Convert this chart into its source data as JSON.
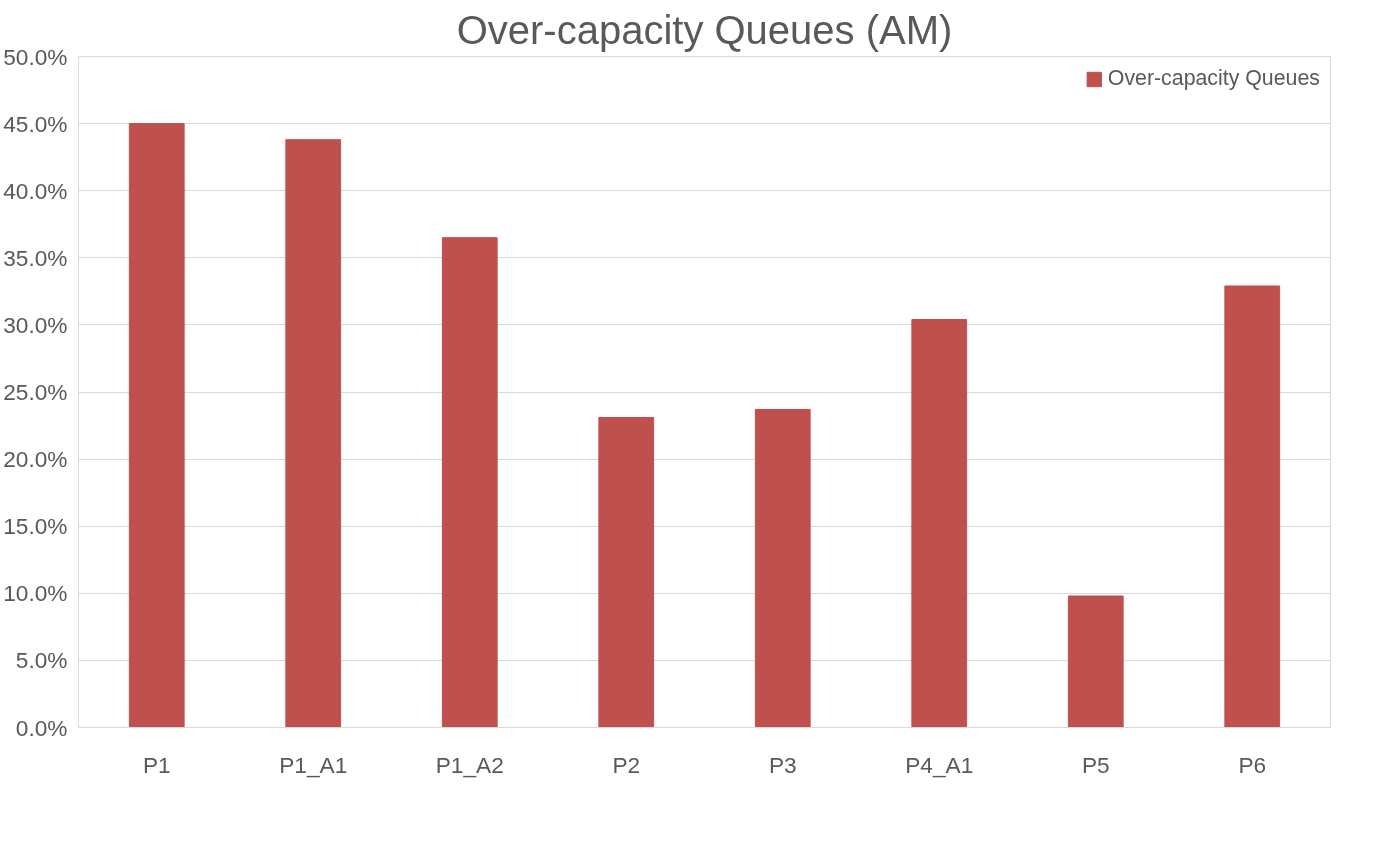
{
  "chart_data": {
    "type": "bar",
    "title": "Over-capacity Queues (AM)",
    "categories": [
      "P1",
      "P1_A1",
      "P1_A2",
      "P2",
      "P3",
      "P4_A1",
      "P5",
      "P6"
    ],
    "series": [
      {
        "name": "Over-capacity Queues",
        "color": "#c0504d",
        "values": [
          45.0,
          43.8,
          36.5,
          23.1,
          23.7,
          30.4,
          9.8,
          32.9
        ]
      }
    ],
    "ylim": [
      0,
      50
    ],
    "yticks": [
      {
        "value": 0,
        "label": "0.0%"
      },
      {
        "value": 5,
        "label": "5.0%"
      },
      {
        "value": 10,
        "label": "10.0%"
      },
      {
        "value": 15,
        "label": "15.0%"
      },
      {
        "value": 20,
        "label": "20.0%"
      },
      {
        "value": 25,
        "label": "25.0%"
      },
      {
        "value": 30,
        "label": "30.0%"
      },
      {
        "value": 35,
        "label": "35.0%"
      },
      {
        "value": 40,
        "label": "40.0%"
      },
      {
        "value": 45,
        "label": "45.0%"
      },
      {
        "value": 50,
        "label": "50.0%"
      }
    ],
    "grid": "y",
    "legend": "top right"
  }
}
